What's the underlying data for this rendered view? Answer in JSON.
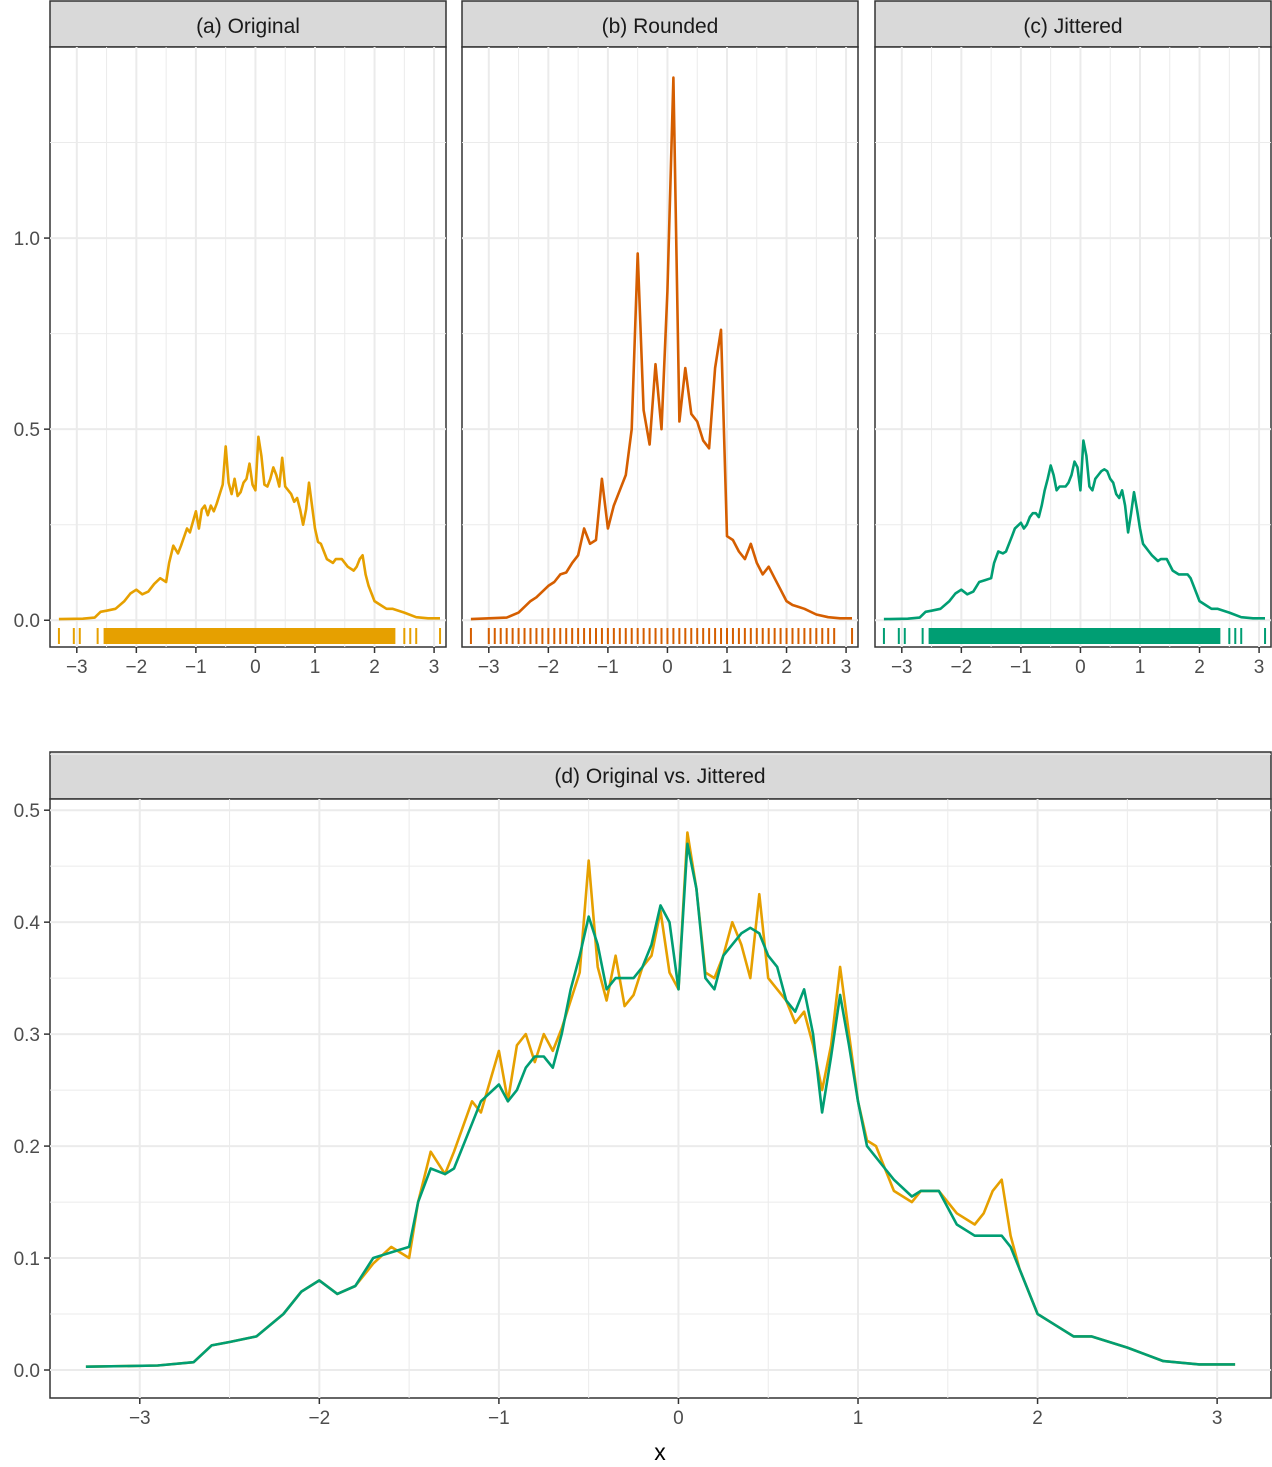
{
  "xlabel": "x",
  "colors": {
    "original": "#E6A000",
    "rounded": "#D55E00",
    "jittered": "#009E73",
    "strip_bg": "#D9D9D9",
    "grid": "#EBEBEB",
    "frame": "#333333"
  },
  "chart_data": [
    {
      "type": "line",
      "title": "(a) Original",
      "color": "#E6A000",
      "xlim": [
        -3.45,
        3.2
      ],
      "ylim": [
        -0.07,
        1.5
      ],
      "xticks": [
        -3,
        -2,
        -1,
        0,
        1,
        2,
        3
      ],
      "xtick_labels": [
        "−3",
        "−2",
        "−1",
        "0",
        "1",
        "2",
        "3"
      ],
      "yticks": [
        0.0,
        0.5,
        1.0
      ],
      "ytick_labels": [
        "0.0",
        "0.5",
        "1.0"
      ],
      "series": [
        {
          "x": [
            -3.3,
            -2.9,
            -2.7,
            -2.6,
            -2.5,
            -2.35,
            -2.2,
            -2.1,
            -2.0,
            -1.9,
            -1.8,
            -1.7,
            -1.6,
            -1.5,
            -1.45,
            -1.38,
            -1.3,
            -1.25,
            -1.15,
            -1.1,
            -1.0,
            -0.95,
            -0.9,
            -0.85,
            -0.8,
            -0.75,
            -0.7,
            -0.65,
            -0.6,
            -0.55,
            -0.5,
            -0.45,
            -0.4,
            -0.35,
            -0.3,
            -0.25,
            -0.2,
            -0.15,
            -0.1,
            -0.05,
            0.0,
            0.05,
            0.1,
            0.15,
            0.2,
            0.25,
            0.3,
            0.35,
            0.4,
            0.45,
            0.5,
            0.55,
            0.6,
            0.65,
            0.7,
            0.75,
            0.8,
            0.85,
            0.9,
            0.95,
            1.0,
            1.05,
            1.1,
            1.15,
            1.2,
            1.3,
            1.35,
            1.45,
            1.55,
            1.65,
            1.7,
            1.75,
            1.8,
            1.85,
            1.9,
            2.0,
            2.1,
            2.2,
            2.3,
            2.5,
            2.7,
            2.9,
            3.1
          ],
          "y": [
            0.003,
            0.004,
            0.007,
            0.022,
            0.025,
            0.03,
            0.05,
            0.07,
            0.08,
            0.068,
            0.075,
            0.095,
            0.11,
            0.1,
            0.15,
            0.195,
            0.175,
            0.195,
            0.24,
            0.23,
            0.285,
            0.24,
            0.29,
            0.3,
            0.275,
            0.3,
            0.285,
            0.305,
            0.33,
            0.355,
            0.455,
            0.36,
            0.33,
            0.37,
            0.325,
            0.335,
            0.36,
            0.37,
            0.41,
            0.355,
            0.34,
            0.48,
            0.43,
            0.355,
            0.35,
            0.37,
            0.4,
            0.38,
            0.35,
            0.425,
            0.35,
            0.34,
            0.33,
            0.31,
            0.32,
            0.29,
            0.25,
            0.29,
            0.36,
            0.3,
            0.24,
            0.205,
            0.2,
            0.18,
            0.16,
            0.15,
            0.16,
            0.16,
            0.14,
            0.13,
            0.14,
            0.16,
            0.17,
            0.12,
            0.09,
            0.05,
            0.04,
            0.03,
            0.03,
            0.02,
            0.008,
            0.005,
            0.005
          ]
        }
      ]
    },
    {
      "type": "line",
      "title": "(b) Rounded",
      "color": "#D55E00",
      "xlim": [
        -3.45,
        3.2
      ],
      "ylim": [
        -0.07,
        1.5
      ],
      "xticks": [
        -3,
        -2,
        -1,
        0,
        1,
        2,
        3
      ],
      "xtick_labels": [
        "−3",
        "−2",
        "−1",
        "0",
        "1",
        "2",
        "3"
      ],
      "yticks": [
        0.0,
        0.5,
        1.0
      ],
      "ytick_labels": [
        "0.0",
        "0.5",
        "1.0"
      ],
      "series": [
        {
          "x": [
            -3.3,
            -2.7,
            -2.5,
            -2.3,
            -2.2,
            -2.0,
            -1.9,
            -1.8,
            -1.7,
            -1.6,
            -1.5,
            -1.4,
            -1.3,
            -1.2,
            -1.1,
            -1.0,
            -0.9,
            -0.8,
            -0.7,
            -0.6,
            -0.5,
            -0.4,
            -0.3,
            -0.2,
            -0.1,
            0.0,
            0.1,
            0.2,
            0.3,
            0.4,
            0.5,
            0.6,
            0.7,
            0.8,
            0.9,
            1.0,
            1.1,
            1.2,
            1.3,
            1.4,
            1.5,
            1.6,
            1.7,
            1.8,
            1.9,
            2.0,
            2.1,
            2.2,
            2.3,
            2.5,
            2.7,
            2.9,
            3.1
          ],
          "y": [
            0.003,
            0.007,
            0.02,
            0.05,
            0.06,
            0.09,
            0.1,
            0.12,
            0.125,
            0.15,
            0.17,
            0.24,
            0.2,
            0.21,
            0.37,
            0.24,
            0.3,
            0.34,
            0.38,
            0.5,
            0.96,
            0.55,
            0.46,
            0.67,
            0.5,
            0.86,
            1.42,
            0.52,
            0.66,
            0.54,
            0.52,
            0.47,
            0.45,
            0.66,
            0.76,
            0.22,
            0.21,
            0.18,
            0.16,
            0.2,
            0.15,
            0.12,
            0.14,
            0.11,
            0.08,
            0.05,
            0.04,
            0.035,
            0.03,
            0.015,
            0.008,
            0.005,
            0.005
          ]
        }
      ]
    },
    {
      "type": "line",
      "title": "(c) Jittered",
      "color": "#009E73",
      "xlim": [
        -3.45,
        3.2
      ],
      "ylim": [
        -0.07,
        1.5
      ],
      "xticks": [
        -3,
        -2,
        -1,
        0,
        1,
        2,
        3
      ],
      "xtick_labels": [
        "−3",
        "−2",
        "−1",
        "0",
        "1",
        "2",
        "3"
      ],
      "yticks": [
        0.0,
        0.5,
        1.0
      ],
      "ytick_labels": [
        "0.0",
        "0.5",
        "1.0"
      ],
      "series": [
        {
          "x": [
            -3.3,
            -2.9,
            -2.7,
            -2.6,
            -2.5,
            -2.35,
            -2.2,
            -2.1,
            -2.0,
            -1.9,
            -1.8,
            -1.7,
            -1.6,
            -1.5,
            -1.45,
            -1.38,
            -1.3,
            -1.25,
            -1.15,
            -1.1,
            -1.0,
            -0.95,
            -0.9,
            -0.85,
            -0.8,
            -0.75,
            -0.7,
            -0.65,
            -0.6,
            -0.55,
            -0.5,
            -0.45,
            -0.4,
            -0.35,
            -0.3,
            -0.25,
            -0.2,
            -0.15,
            -0.1,
            -0.05,
            0.0,
            0.05,
            0.1,
            0.15,
            0.2,
            0.25,
            0.3,
            0.35,
            0.4,
            0.45,
            0.5,
            0.55,
            0.6,
            0.65,
            0.7,
            0.75,
            0.8,
            0.85,
            0.9,
            0.95,
            1.0,
            1.05,
            1.1,
            1.15,
            1.2,
            1.3,
            1.35,
            1.45,
            1.55,
            1.65,
            1.7,
            1.75,
            1.8,
            1.85,
            1.9,
            2.0,
            2.1,
            2.2,
            2.3,
            2.5,
            2.7,
            2.9,
            3.1
          ],
          "y": [
            0.003,
            0.004,
            0.007,
            0.022,
            0.025,
            0.03,
            0.05,
            0.07,
            0.08,
            0.068,
            0.075,
            0.1,
            0.105,
            0.11,
            0.15,
            0.18,
            0.175,
            0.18,
            0.22,
            0.24,
            0.255,
            0.24,
            0.25,
            0.27,
            0.28,
            0.28,
            0.27,
            0.3,
            0.34,
            0.37,
            0.405,
            0.38,
            0.34,
            0.35,
            0.35,
            0.35,
            0.36,
            0.38,
            0.415,
            0.4,
            0.34,
            0.47,
            0.43,
            0.35,
            0.34,
            0.37,
            0.38,
            0.39,
            0.395,
            0.39,
            0.37,
            0.36,
            0.33,
            0.32,
            0.34,
            0.3,
            0.23,
            0.28,
            0.335,
            0.29,
            0.24,
            0.2,
            0.19,
            0.18,
            0.17,
            0.155,
            0.16,
            0.16,
            0.13,
            0.12,
            0.12,
            0.12,
            0.12,
            0.11,
            0.09,
            0.05,
            0.04,
            0.03,
            0.03,
            0.02,
            0.008,
            0.005,
            0.005
          ]
        }
      ]
    },
    {
      "type": "line",
      "title": "(d) Original vs. Jittered",
      "xlabel": "x",
      "xlim": [
        -3.5,
        3.3
      ],
      "ylim": [
        -0.025,
        0.51
      ],
      "xticks": [
        -3,
        -2,
        -1,
        0,
        1,
        2,
        3
      ],
      "xtick_labels": [
        "−3",
        "−2",
        "−1",
        "0",
        "1",
        "2",
        "3"
      ],
      "yticks": [
        0.0,
        0.1,
        0.2,
        0.3,
        0.4,
        0.5
      ],
      "ytick_labels": [
        "0.0",
        "0.1",
        "0.2",
        "0.3",
        "0.4",
        "0.5"
      ],
      "series": [
        {
          "color": "#E6A000",
          "x": [
            -3.3,
            -2.9,
            -2.7,
            -2.6,
            -2.5,
            -2.35,
            -2.2,
            -2.1,
            -2.0,
            -1.9,
            -1.8,
            -1.7,
            -1.6,
            -1.5,
            -1.45,
            -1.38,
            -1.3,
            -1.25,
            -1.15,
            -1.1,
            -1.0,
            -0.95,
            -0.9,
            -0.85,
            -0.8,
            -0.75,
            -0.7,
            -0.65,
            -0.6,
            -0.55,
            -0.5,
            -0.45,
            -0.4,
            -0.35,
            -0.3,
            -0.25,
            -0.2,
            -0.15,
            -0.1,
            -0.05,
            0.0,
            0.05,
            0.1,
            0.15,
            0.2,
            0.25,
            0.3,
            0.35,
            0.4,
            0.45,
            0.5,
            0.55,
            0.6,
            0.65,
            0.7,
            0.75,
            0.8,
            0.85,
            0.9,
            0.95,
            1.0,
            1.05,
            1.1,
            1.15,
            1.2,
            1.3,
            1.35,
            1.45,
            1.55,
            1.65,
            1.7,
            1.75,
            1.8,
            1.85,
            1.9,
            2.0,
            2.1,
            2.2,
            2.3,
            2.5,
            2.7,
            2.9,
            3.1
          ],
          "y": [
            0.003,
            0.004,
            0.007,
            0.022,
            0.025,
            0.03,
            0.05,
            0.07,
            0.08,
            0.068,
            0.075,
            0.095,
            0.11,
            0.1,
            0.15,
            0.195,
            0.175,
            0.195,
            0.24,
            0.23,
            0.285,
            0.24,
            0.29,
            0.3,
            0.275,
            0.3,
            0.285,
            0.305,
            0.33,
            0.355,
            0.455,
            0.36,
            0.33,
            0.37,
            0.325,
            0.335,
            0.36,
            0.37,
            0.41,
            0.355,
            0.34,
            0.48,
            0.43,
            0.355,
            0.35,
            0.37,
            0.4,
            0.38,
            0.35,
            0.425,
            0.35,
            0.34,
            0.33,
            0.31,
            0.32,
            0.29,
            0.25,
            0.29,
            0.36,
            0.3,
            0.24,
            0.205,
            0.2,
            0.18,
            0.16,
            0.15,
            0.16,
            0.16,
            0.14,
            0.13,
            0.14,
            0.16,
            0.17,
            0.12,
            0.09,
            0.05,
            0.04,
            0.03,
            0.03,
            0.02,
            0.008,
            0.005,
            0.005
          ]
        },
        {
          "color": "#009E73",
          "x": [
            -3.3,
            -2.9,
            -2.7,
            -2.6,
            -2.5,
            -2.35,
            -2.2,
            -2.1,
            -2.0,
            -1.9,
            -1.8,
            -1.7,
            -1.6,
            -1.5,
            -1.45,
            -1.38,
            -1.3,
            -1.25,
            -1.15,
            -1.1,
            -1.0,
            -0.95,
            -0.9,
            -0.85,
            -0.8,
            -0.75,
            -0.7,
            -0.65,
            -0.6,
            -0.55,
            -0.5,
            -0.45,
            -0.4,
            -0.35,
            -0.3,
            -0.25,
            -0.2,
            -0.15,
            -0.1,
            -0.05,
            0.0,
            0.05,
            0.1,
            0.15,
            0.2,
            0.25,
            0.3,
            0.35,
            0.4,
            0.45,
            0.5,
            0.55,
            0.6,
            0.65,
            0.7,
            0.75,
            0.8,
            0.85,
            0.9,
            0.95,
            1.0,
            1.05,
            1.1,
            1.15,
            1.2,
            1.3,
            1.35,
            1.45,
            1.55,
            1.65,
            1.7,
            1.75,
            1.8,
            1.85,
            1.9,
            2.0,
            2.1,
            2.2,
            2.3,
            2.5,
            2.7,
            2.9,
            3.1
          ],
          "y": [
            0.003,
            0.004,
            0.007,
            0.022,
            0.025,
            0.03,
            0.05,
            0.07,
            0.08,
            0.068,
            0.075,
            0.1,
            0.105,
            0.11,
            0.15,
            0.18,
            0.175,
            0.18,
            0.22,
            0.24,
            0.255,
            0.24,
            0.25,
            0.27,
            0.28,
            0.28,
            0.27,
            0.3,
            0.34,
            0.37,
            0.405,
            0.38,
            0.34,
            0.35,
            0.35,
            0.35,
            0.36,
            0.38,
            0.415,
            0.4,
            0.34,
            0.47,
            0.43,
            0.35,
            0.34,
            0.37,
            0.38,
            0.39,
            0.395,
            0.39,
            0.37,
            0.36,
            0.33,
            0.32,
            0.34,
            0.3,
            0.23,
            0.28,
            0.335,
            0.29,
            0.24,
            0.2,
            0.19,
            0.18,
            0.17,
            0.155,
            0.16,
            0.16,
            0.13,
            0.12,
            0.12,
            0.12,
            0.12,
            0.11,
            0.09,
            0.05,
            0.04,
            0.03,
            0.03,
            0.02,
            0.008,
            0.005,
            0.005
          ]
        }
      ]
    }
  ]
}
